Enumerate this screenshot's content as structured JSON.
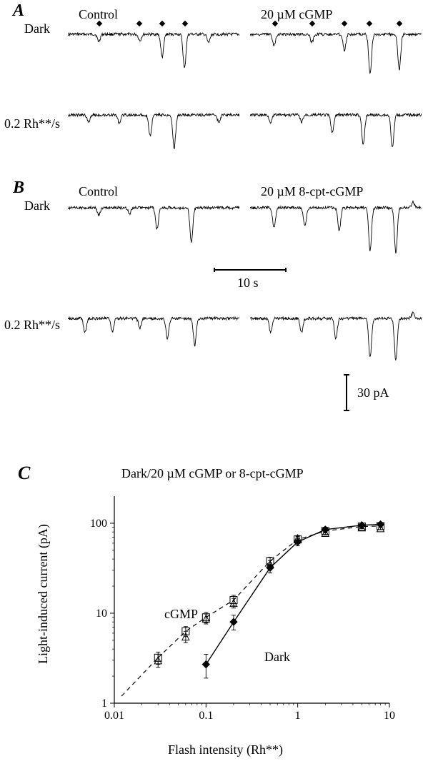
{
  "panelA": {
    "label": "A",
    "rows": [
      {
        "ylabel": "Dark"
      },
      {
        "ylabel": "0.2 Rh**/s"
      }
    ],
    "cols": [
      {
        "title": "Control"
      },
      {
        "title": "20 µM cGMP"
      }
    ],
    "marker_color": "#000000"
  },
  "panelB": {
    "label": "B",
    "rows": [
      {
        "ylabel": "Dark"
      },
      {
        "ylabel": "0.2 Rh**/s"
      }
    ],
    "cols": [
      {
        "title": "Control"
      },
      {
        "title": "20 µM 8-cpt-cGMP"
      }
    ],
    "time_scale": {
      "label": "10 s"
    },
    "amp_scale": {
      "label": "30 pA"
    }
  },
  "panelC": {
    "label": "C",
    "title": "Dark/20 µM cGMP or 8-cpt-cGMP",
    "xlabel": "Flash intensity (Rh**)",
    "ylabel": "Light-induced current (pA)",
    "xlim": [
      0.01,
      10
    ],
    "ylim": [
      1,
      200
    ],
    "xticks": [
      0.01,
      0.1,
      1,
      10
    ],
    "yticks": [
      1,
      10,
      100
    ],
    "xtick_labels": [
      "0.01",
      "0.1",
      "1",
      "10"
    ],
    "ytick_labels": [
      "1",
      "10",
      "100"
    ],
    "grid": false,
    "background_color": "#ffffff",
    "axis_color": "#000000",
    "series": {
      "dark": {
        "label": "Dark",
        "marker": "diamond-filled",
        "marker_size": 5,
        "line": "solid",
        "line_width": 1.4,
        "color": "#000000",
        "x": [
          0.1,
          0.2,
          0.5,
          1,
          2,
          5,
          8
        ],
        "y": [
          2.7,
          8.0,
          32,
          62,
          85,
          95,
          97
        ],
        "yerr": [
          0.8,
          1.5,
          4,
          6,
          5,
          3,
          3
        ]
      },
      "cGMP": {
        "label": "cGMP",
        "marker": "square-open",
        "marker_size": 5,
        "line": "dashed",
        "line_width": 1.2,
        "color": "#000000",
        "x": [
          0.03,
          0.06,
          0.1,
          0.2,
          0.5,
          1,
          2,
          5,
          8
        ],
        "y": [
          3.2,
          6.3,
          9.0,
          14.0,
          38,
          66,
          82,
          92,
          93
        ],
        "yerr": [
          0.5,
          0.8,
          1.2,
          1.8,
          4,
          5,
          4,
          3,
          3
        ]
      },
      "cpt": {
        "label": "8-cpt-cGMP",
        "marker": "triangle-open",
        "marker_size": 5,
        "line": "none",
        "color": "#000000",
        "x": [
          0.03,
          0.06,
          0.1,
          0.2,
          0.5,
          1,
          2,
          5,
          8
        ],
        "y": [
          3.0,
          5.5,
          8.7,
          13.0,
          35,
          68,
          78,
          90,
          88
        ],
        "yerr": [
          0.5,
          0.8,
          1.1,
          1.6,
          3.5,
          5,
          4,
          3,
          3
        ]
      }
    }
  },
  "traces": {
    "noise_amp": 2.0,
    "color": "#000000",
    "line_width": 0.9,
    "A_dark_control_spikes": [
      {
        "t": 0.18,
        "a": 10
      },
      {
        "t": 0.42,
        "a": 9
      },
      {
        "t": 0.55,
        "a": 32
      },
      {
        "t": 0.68,
        "a": 48
      },
      {
        "t": 0.82,
        "a": 12
      }
    ],
    "A_dark_cgmp_spikes": [
      {
        "t": 0.14,
        "a": 15
      },
      {
        "t": 0.36,
        "a": 12
      },
      {
        "t": 0.55,
        "a": 22
      },
      {
        "t": 0.7,
        "a": 56
      },
      {
        "t": 0.87,
        "a": 50
      }
    ],
    "A_bg_control_spikes": [
      {
        "t": 0.12,
        "a": 10
      },
      {
        "t": 0.3,
        "a": 11
      },
      {
        "t": 0.48,
        "a": 30
      },
      {
        "t": 0.62,
        "a": 46
      },
      {
        "t": 0.88,
        "a": 10
      }
    ],
    "A_bg_cgmp_spikes": [
      {
        "t": 0.12,
        "a": 10
      },
      {
        "t": 0.3,
        "a": 10
      },
      {
        "t": 0.48,
        "a": 25
      },
      {
        "t": 0.66,
        "a": 42
      },
      {
        "t": 0.83,
        "a": 46
      }
    ],
    "B_dark_control_spikes": [
      {
        "t": 0.18,
        "a": 10
      },
      {
        "t": 0.36,
        "a": 9
      },
      {
        "t": 0.52,
        "a": 30
      },
      {
        "t": 0.72,
        "a": 48
      }
    ],
    "B_dark_cpt_spikes": [
      {
        "t": 0.14,
        "a": 28
      },
      {
        "t": 0.32,
        "a": 26
      },
      {
        "t": 0.52,
        "a": 32
      },
      {
        "t": 0.7,
        "a": 60
      },
      {
        "t": 0.85,
        "a": 64
      },
      {
        "t": 0.95,
        "a": -8
      }
    ],
    "B_bg_control_spikes": [
      {
        "t": 0.1,
        "a": 20
      },
      {
        "t": 0.26,
        "a": 18
      },
      {
        "t": 0.42,
        "a": 14
      },
      {
        "t": 0.58,
        "a": 28
      },
      {
        "t": 0.74,
        "a": 38
      }
    ],
    "B_bg_cpt_spikes": [
      {
        "t": 0.12,
        "a": 20
      },
      {
        "t": 0.3,
        "a": 20
      },
      {
        "t": 0.5,
        "a": 28
      },
      {
        "t": 0.7,
        "a": 55
      },
      {
        "t": 0.85,
        "a": 60
      },
      {
        "t": 0.95,
        "a": -8
      }
    ]
  }
}
